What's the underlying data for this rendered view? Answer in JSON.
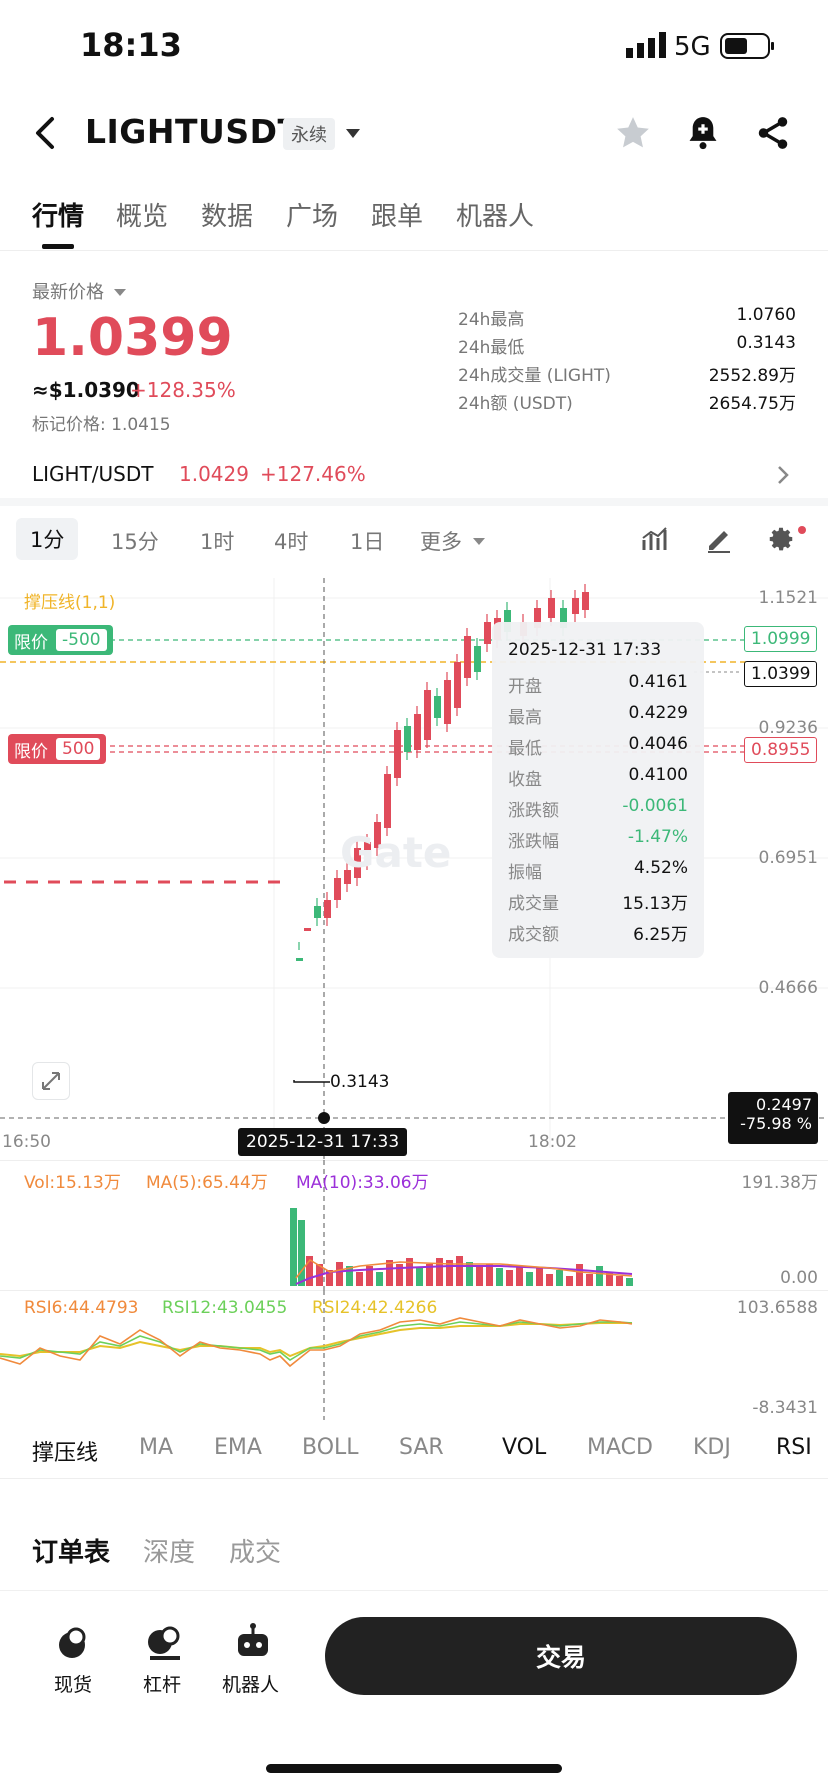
{
  "status": {
    "time": "18:13",
    "network": "5G"
  },
  "header": {
    "title": "LIGHTUSDT",
    "badge": "永续"
  },
  "tabs": [
    "行情",
    "概览",
    "数据",
    "广场",
    "跟单",
    "机器人"
  ],
  "price": {
    "label": "最新价格",
    "last": "1.0399",
    "usd": "≈$1.0390",
    "change": "+128.35%",
    "mark": "标记价格: 1.0415"
  },
  "stats": [
    {
      "k": "24h最高",
      "v": "1.0760"
    },
    {
      "k": "24h最低",
      "v": "0.3143"
    },
    {
      "k": "24h成交量 (LIGHT)",
      "v": "2552.89万"
    },
    {
      "k": "24h额 (USDT)",
      "v": "2654.75万"
    }
  ],
  "spot": {
    "pair": "LIGHT/USDT",
    "price": "1.0429",
    "change": "+127.46%"
  },
  "intervals": [
    "1分",
    "15分",
    "1时",
    "4时",
    "1日",
    "更多"
  ],
  "chart": {
    "sr_label": "撑压线(1,1)",
    "y_ticks": [
      "1.1521",
      "0.9236",
      "0.6951",
      "0.4666"
    ],
    "x_ticks": [
      "16:50",
      "18:02"
    ],
    "cursor_time": "2025-12-31 17:33",
    "low_marker": "0.3143",
    "cursor_price": "0.2497",
    "cursor_pct": "-75.98 %",
    "order_buy": {
      "tag": "限价",
      "qty": "-500",
      "price": "1.0999"
    },
    "order_sell": {
      "tag": "限价",
      "qty": "500",
      "price": "0.8955"
    },
    "last_price_box": "1.0399",
    "watermark": "Gate"
  },
  "tooltip": {
    "time": "2025-12-31 17:33",
    "rows": [
      {
        "k": "开盘",
        "v": "0.4161"
      },
      {
        "k": "最高",
        "v": "0.4229"
      },
      {
        "k": "最低",
        "v": "0.4046"
      },
      {
        "k": "收盘",
        "v": "0.4100"
      },
      {
        "k": "涨跌额",
        "v": "-0.0061"
      },
      {
        "k": "涨跌幅",
        "v": "-1.47%"
      },
      {
        "k": "振幅",
        "v": "4.52%"
      },
      {
        "k": "成交量",
        "v": "15.13万"
      },
      {
        "k": "成交额",
        "v": "6.25万"
      }
    ]
  },
  "volume": {
    "vol": "Vol:15.13万",
    "ma5": "MA(5):65.44万",
    "ma10": "MA(10):33.06万",
    "max": "191.38万",
    "min": "0.00"
  },
  "rsi": {
    "r6": "RSI6:44.4793",
    "r12": "RSI12:43.0455",
    "r24": "RSI24:42.4266",
    "max": "103.6588",
    "min": "-8.3431"
  },
  "indicators": [
    "撑压线",
    "MA",
    "EMA",
    "BOLL",
    "SAR",
    "VOL",
    "MACD",
    "KDJ",
    "RSI"
  ],
  "book_tabs": [
    "订单表",
    "深度",
    "成交"
  ],
  "bottom_nav": [
    "现货",
    "杠杆",
    "机器人"
  ],
  "trade_button": "交易",
  "colors": {
    "up": "#e04b5a",
    "down": "#3cb878",
    "sr": "#f0b429",
    "ma10": "#9b30d9"
  }
}
